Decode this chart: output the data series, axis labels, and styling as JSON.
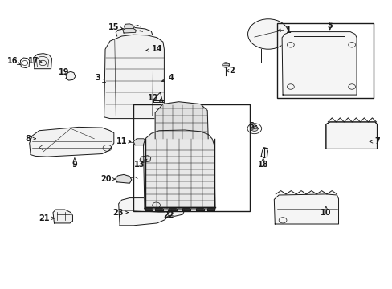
{
  "bg_color": "#ffffff",
  "line_color": "#1a1a1a",
  "figsize": [
    4.89,
    3.6
  ],
  "dpi": 100,
  "parts_label": {
    "1": [
      0.735,
      0.895,
      0.7,
      0.895
    ],
    "2": [
      0.59,
      0.755,
      0.574,
      0.755
    ],
    "3": [
      0.248,
      0.73,
      0.275,
      0.71
    ],
    "4": [
      0.435,
      0.73,
      0.405,
      0.715
    ],
    "5": [
      0.84,
      0.91,
      0.84,
      0.895
    ],
    "6": [
      0.64,
      0.565,
      0.655,
      0.565
    ],
    "7": [
      0.96,
      0.51,
      0.94,
      0.51
    ],
    "8": [
      0.072,
      0.52,
      0.098,
      0.52
    ],
    "9": [
      0.19,
      0.43,
      0.19,
      0.455
    ],
    "10": [
      0.83,
      0.265,
      0.83,
      0.288
    ],
    "11": [
      0.31,
      0.51,
      0.335,
      0.51
    ],
    "12": [
      0.39,
      0.66,
      0.415,
      0.65
    ],
    "13": [
      0.355,
      0.43,
      0.375,
      0.45
    ],
    "14": [
      0.4,
      0.83,
      0.37,
      0.825
    ],
    "15": [
      0.29,
      0.905,
      0.315,
      0.9
    ],
    "16": [
      0.032,
      0.79,
      0.053,
      0.775
    ],
    "17": [
      0.085,
      0.79,
      0.108,
      0.785
    ],
    "18": [
      0.67,
      0.43,
      0.67,
      0.455
    ],
    "19": [
      0.162,
      0.75,
      0.173,
      0.73
    ],
    "20": [
      0.27,
      0.38,
      0.295,
      0.38
    ],
    "21": [
      0.112,
      0.245,
      0.14,
      0.245
    ],
    "22": [
      0.43,
      0.255,
      0.43,
      0.278
    ],
    "23": [
      0.3,
      0.265,
      0.328,
      0.265
    ]
  }
}
